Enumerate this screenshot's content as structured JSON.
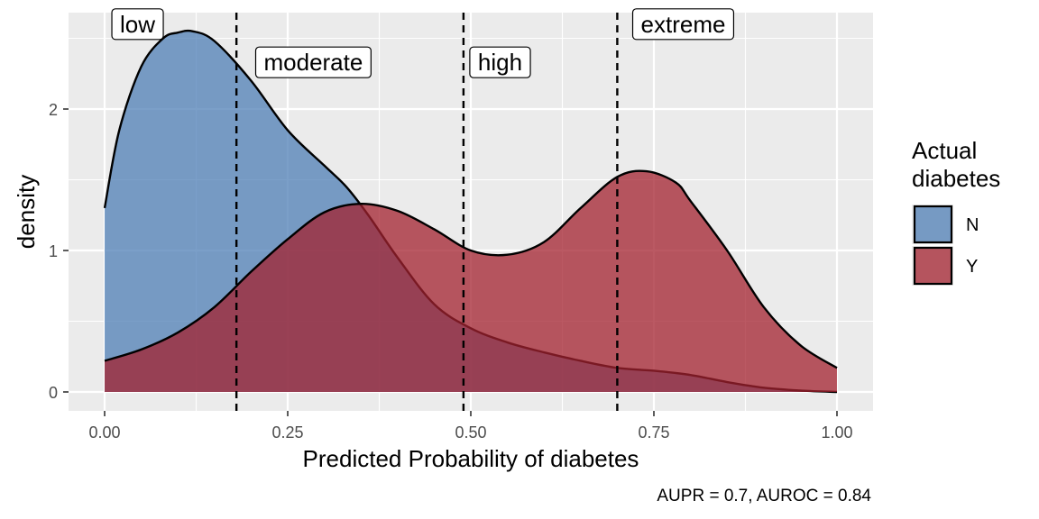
{
  "chart_data": {
    "type": "area",
    "title": "",
    "xlabel": "Predicted Probability of diabetes",
    "ylabel": "density",
    "caption": "AUPR = 0.7, AUROC = 0.84",
    "xlim": [
      0,
      1
    ],
    "ylim": [
      0,
      2.55
    ],
    "x_ticks": [
      0,
      0.25,
      0.5,
      0.75,
      1
    ],
    "x_tick_labels": [
      "0.00",
      "0.25",
      "0.50",
      "0.75",
      "1.00"
    ],
    "y_ticks": [
      0,
      1,
      2
    ],
    "y_tick_labels": [
      "0",
      "1",
      "2"
    ],
    "legend": {
      "title": "Actual\ndiabetes",
      "position": "right",
      "entries": [
        {
          "label": "N",
          "color": "#4F7FB5"
        },
        {
          "label": "Y",
          "color": "#A3222F"
        }
      ]
    },
    "series": [
      {
        "name": "N",
        "color": "#4F7FB5",
        "x": [
          0.0,
          0.02,
          0.05,
          0.08,
          0.1,
          0.12,
          0.15,
          0.2,
          0.25,
          0.3,
          0.33,
          0.36,
          0.4,
          0.45,
          0.5,
          0.55,
          0.6,
          0.65,
          0.7,
          0.75,
          0.8,
          0.85,
          0.9,
          0.95,
          1.0
        ],
        "y": [
          1.3,
          1.85,
          2.3,
          2.5,
          2.54,
          2.55,
          2.48,
          2.2,
          1.85,
          1.6,
          1.45,
          1.25,
          0.95,
          0.62,
          0.45,
          0.35,
          0.28,
          0.22,
          0.17,
          0.15,
          0.12,
          0.07,
          0.03,
          0.01,
          0.0
        ]
      },
      {
        "name": "Y",
        "color": "#A3222F",
        "x": [
          0.0,
          0.05,
          0.1,
          0.15,
          0.2,
          0.25,
          0.3,
          0.35,
          0.4,
          0.45,
          0.5,
          0.55,
          0.6,
          0.65,
          0.7,
          0.74,
          0.78,
          0.8,
          0.85,
          0.9,
          0.95,
          1.0
        ],
        "y": [
          0.22,
          0.3,
          0.42,
          0.6,
          0.85,
          1.08,
          1.27,
          1.33,
          1.28,
          1.15,
          1.0,
          0.97,
          1.06,
          1.3,
          1.52,
          1.56,
          1.48,
          1.35,
          1.0,
          0.6,
          0.33,
          0.17
        ]
      }
    ],
    "vlines": [
      0.18,
      0.49,
      0.7
    ],
    "annotations": [
      {
        "x": 0.045,
        "y": 2.6,
        "label": "low"
      },
      {
        "x": 0.285,
        "y": 2.33,
        "label": "moderate"
      },
      {
        "x": 0.54,
        "y": 2.33,
        "label": "high"
      },
      {
        "x": 0.79,
        "y": 2.6,
        "label": "extreme"
      }
    ]
  }
}
